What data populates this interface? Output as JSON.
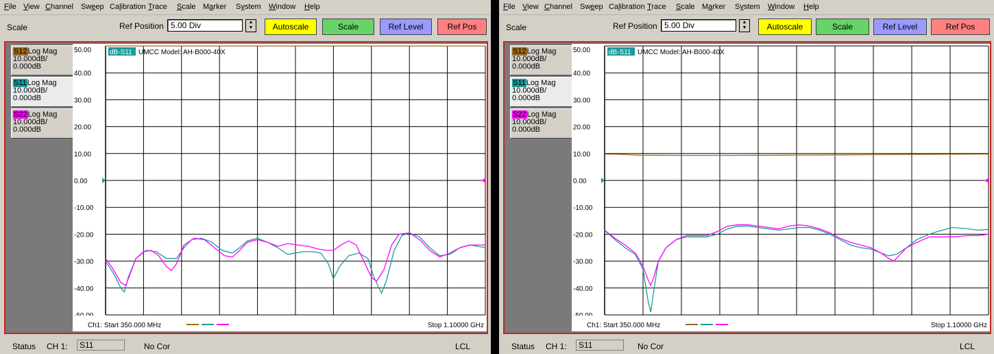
{
  "menu": [
    "File",
    "View",
    "Channel",
    "Sweep",
    "Calibration",
    "Trace",
    "Scale",
    "Marker",
    "System",
    "Window",
    "Help"
  ],
  "menu_underline": [
    0,
    0,
    0,
    2,
    2,
    0,
    0,
    1,
    1,
    0,
    0
  ],
  "toolbar": {
    "scale_label": "Scale",
    "ref_position_label": "Ref Position",
    "ref_position_value": "5.00 Div",
    "autoscale_label": "Autoscale",
    "scale_button_label": "Scale",
    "ref_level_label": "Ref Level",
    "ref_pos_label": "Ref Pos"
  },
  "colors": {
    "s12": "#9c6a1c",
    "s11": "#1a9a9a",
    "s22": "#ff00ff",
    "autoscale": "#ffff00",
    "scale": "#66d466",
    "reflevel": "#9a9aff",
    "refpos": "#ff8080"
  },
  "legend": [
    {
      "trace": "S12",
      "format": "Log Mag",
      "scale": "10.000dB/",
      "ref": "0.000dB"
    },
    {
      "trace": "S11",
      "format": "Log Mag",
      "scale": "10.000dB/",
      "ref": "0.000dB"
    },
    {
      "trace": "S22",
      "format": "Log Mag",
      "scale": "10.000dB/",
      "ref": "0.000dB"
    }
  ],
  "y_ticks": [
    "50.00",
    "40.00",
    "30.00",
    "20.00",
    "10.00",
    "0.00",
    "-10.00",
    "-20.00",
    "-30.00",
    "-40.00",
    "-50.00"
  ],
  "footer": {
    "start": "Ch1: Start  350.000 MHz",
    "stop": "Stop  1.10000 GHz"
  },
  "status": {
    "label": "Status",
    "channel": "CH 1:",
    "trace": "S11",
    "correction": "No Cor",
    "mode": "LCL"
  },
  "panels": [
    {
      "title_trace": "dB-S11",
      "title_text": "UMCC Model: AH-B000-40X",
      "chart_data": {
        "type": "line",
        "x_range_mhz": [
          350,
          1100
        ],
        "ylim": [
          -50,
          50
        ],
        "series": [
          {
            "name": "S11",
            "values": [
              [
                350,
                -30
              ],
              [
                367,
                -35
              ],
              [
                380,
                -40
              ],
              [
                387,
                -41.5
              ],
              [
                395,
                -36
              ],
              [
                410,
                -29
              ],
              [
                430,
                -26
              ],
              [
                450,
                -26.5
              ],
              [
                470,
                -29
              ],
              [
                490,
                -29
              ],
              [
                505,
                -25
              ],
              [
                520,
                -22
              ],
              [
                540,
                -21.5
              ],
              [
                560,
                -23
              ],
              [
                580,
                -26
              ],
              [
                600,
                -27
              ],
              [
                615,
                -25
              ],
              [
                630,
                -22.5
              ],
              [
                650,
                -21.5
              ],
              [
                670,
                -23
              ],
              [
                690,
                -25
              ],
              [
                710,
                -27.5
              ],
              [
                725,
                -27
              ],
              [
                740,
                -26.5
              ],
              [
                760,
                -26.5
              ],
              [
                775,
                -27
              ],
              [
                790,
                -31
              ],
              [
                800,
                -36.5
              ],
              [
                812,
                -32
              ],
              [
                830,
                -28
              ],
              [
                850,
                -27
              ],
              [
                868,
                -29
              ],
              [
                880,
                -36
              ],
              [
                895,
                -42
              ],
              [
                905,
                -37
              ],
              [
                920,
                -26
              ],
              [
                935,
                -20.5
              ],
              [
                950,
                -19.5
              ],
              [
                970,
                -21
              ],
              [
                990,
                -25
              ],
              [
                1010,
                -28
              ],
              [
                1030,
                -27.5
              ],
              [
                1050,
                -25
              ],
              [
                1070,
                -24
              ],
              [
                1100,
                -25
              ]
            ]
          },
          {
            "name": "S22",
            "values": [
              [
                350,
                -29
              ],
              [
                365,
                -33
              ],
              [
                380,
                -38
              ],
              [
                390,
                -39
              ],
              [
                398,
                -35
              ],
              [
                410,
                -29
              ],
              [
                425,
                -26.5
              ],
              [
                440,
                -26
              ],
              [
                455,
                -28
              ],
              [
                470,
                -32
              ],
              [
                480,
                -33.5
              ],
              [
                490,
                -31
              ],
              [
                505,
                -24
              ],
              [
                525,
                -21.5
              ],
              [
                545,
                -22
              ],
              [
                565,
                -25
              ],
              [
                585,
                -28
              ],
              [
                600,
                -28.5
              ],
              [
                615,
                -26
              ],
              [
                630,
                -23
              ],
              [
                650,
                -22
              ],
              [
                670,
                -23
              ],
              [
                690,
                -24.5
              ],
              [
                710,
                -23.5
              ],
              [
                730,
                -24
              ],
              [
                750,
                -24.5
              ],
              [
                770,
                -25.5
              ],
              [
                785,
                -26
              ],
              [
                800,
                -26
              ],
              [
                815,
                -24
              ],
              [
                830,
                -22.5
              ],
              [
                845,
                -24
              ],
              [
                860,
                -30
              ],
              [
                875,
                -36
              ],
              [
                885,
                -37.5
              ],
              [
                900,
                -33
              ],
              [
                915,
                -24
              ],
              [
                930,
                -20
              ],
              [
                950,
                -19.5
              ],
              [
                970,
                -22
              ],
              [
                990,
                -26
              ],
              [
                1010,
                -28.5
              ],
              [
                1030,
                -27
              ],
              [
                1050,
                -25
              ],
              [
                1070,
                -24
              ],
              [
                1100,
                -24
              ]
            ]
          },
          {
            "name": "S12",
            "values": [
              [
                350,
                50
              ],
              [
                1100,
                50
              ]
            ]
          }
        ]
      }
    },
    {
      "title_trace": "dB-S11",
      "title_text": "UMCC Model: AH-B000-40X",
      "chart_data": {
        "type": "line",
        "x_range_mhz": [
          350,
          1100
        ],
        "ylim": [
          -50,
          50
        ],
        "series": [
          {
            "name": "S12",
            "values": [
              [
                350,
                9.8
              ],
              [
                380,
                9.7
              ],
              [
                420,
                9.4
              ],
              [
                500,
                9.3
              ],
              [
                600,
                9.3
              ],
              [
                700,
                9.4
              ],
              [
                800,
                9.5
              ],
              [
                900,
                9.6
              ],
              [
                1000,
                9.7
              ],
              [
                1100,
                9.8
              ]
            ]
          },
          {
            "name": "S11",
            "values": [
              [
                350,
                -18.5
              ],
              [
                370,
                -22
              ],
              [
                390,
                -25
              ],
              [
                410,
                -27.5
              ],
              [
                425,
                -33
              ],
              [
                435,
                -45
              ],
              [
                440,
                -49
              ],
              [
                446,
                -41
              ],
              [
                455,
                -30
              ],
              [
                470,
                -25
              ],
              [
                490,
                -22
              ],
              [
                510,
                -21
              ],
              [
                530,
                -21
              ],
              [
                550,
                -21
              ],
              [
                570,
                -20
              ],
              [
                590,
                -18
              ],
              [
                610,
                -17
              ],
              [
                630,
                -17
              ],
              [
                650,
                -17.5
              ],
              [
                670,
                -18
              ],
              [
                690,
                -18.5
              ],
              [
                710,
                -18
              ],
              [
                730,
                -17.5
              ],
              [
                750,
                -17.5
              ],
              [
                770,
                -18.5
              ],
              [
                790,
                -20
              ],
              [
                810,
                -22
              ],
              [
                830,
                -24
              ],
              [
                850,
                -25
              ],
              [
                870,
                -25.5
              ],
              [
                890,
                -27
              ],
              [
                905,
                -28
              ],
              [
                920,
                -27.5
              ],
              [
                940,
                -25
              ],
              [
                960,
                -22
              ],
              [
                985,
                -20
              ],
              [
                1000,
                -19
              ],
              [
                1030,
                -17.5
              ],
              [
                1060,
                -18
              ],
              [
                1080,
                -18.5
              ],
              [
                1100,
                -18.2
              ]
            ]
          },
          {
            "name": "S22",
            "values": [
              [
                350,
                -18.5
              ],
              [
                370,
                -21.5
              ],
              [
                390,
                -24
              ],
              [
                410,
                -27
              ],
              [
                425,
                -32
              ],
              [
                435,
                -37
              ],
              [
                440,
                -39
              ],
              [
                446,
                -36
              ],
              [
                455,
                -30
              ],
              [
                470,
                -25
              ],
              [
                490,
                -22
              ],
              [
                510,
                -20.5
              ],
              [
                530,
                -20.5
              ],
              [
                550,
                -20.5
              ],
              [
                570,
                -19
              ],
              [
                590,
                -17
              ],
              [
                610,
                -16.5
              ],
              [
                630,
                -16.5
              ],
              [
                650,
                -17
              ],
              [
                670,
                -17.5
              ],
              [
                690,
                -18
              ],
              [
                710,
                -17
              ],
              [
                730,
                -16.5
              ],
              [
                750,
                -17
              ],
              [
                770,
                -18
              ],
              [
                790,
                -19.5
              ],
              [
                810,
                -21.5
              ],
              [
                830,
                -23
              ],
              [
                850,
                -24
              ],
              [
                870,
                -25
              ],
              [
                890,
                -27
              ],
              [
                905,
                -29
              ],
              [
                915,
                -30
              ],
              [
                925,
                -28
              ],
              [
                940,
                -25
              ],
              [
                960,
                -23
              ],
              [
                985,
                -21
              ],
              [
                1000,
                -21
              ],
              [
                1030,
                -21
              ],
              [
                1060,
                -20.5
              ],
              [
                1080,
                -20.5
              ],
              [
                1100,
                -20
              ]
            ]
          }
        ]
      }
    }
  ]
}
